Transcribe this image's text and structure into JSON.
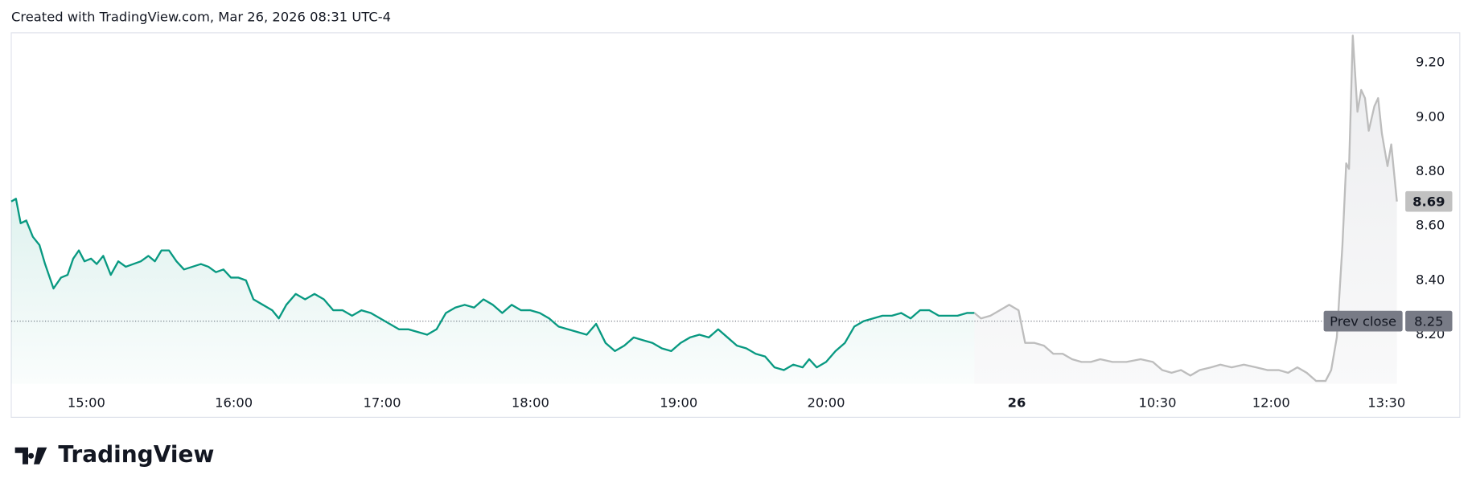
{
  "header": {
    "text": "Created with TradingView.com, Mar 26, 2026 08:31 UTC-4"
  },
  "chart_data": {
    "type": "line",
    "xlim": [
      0,
      1476
    ],
    "ylim": [
      8.02,
      9.31
    ],
    "xticks": [
      {
        "value": 80,
        "label": "15:00"
      },
      {
        "value": 237,
        "label": "16:00"
      },
      {
        "value": 395,
        "label": "17:00"
      },
      {
        "value": 553,
        "label": "18:00"
      },
      {
        "value": 711,
        "label": "19:00"
      },
      {
        "value": 868,
        "label": "20:00"
      },
      {
        "value": 1071,
        "label": "26"
      },
      {
        "value": 1221,
        "label": "10:30"
      },
      {
        "value": 1342,
        "label": "12:00"
      },
      {
        "value": 1465,
        "label": "13:30"
      }
    ],
    "yticks": [
      {
        "value": 8.2,
        "label": "8.20"
      },
      {
        "value": 8.4,
        "label": "8.40"
      },
      {
        "value": 8.6,
        "label": "8.60"
      },
      {
        "value": 8.8,
        "label": "8.80"
      },
      {
        "value": 9,
        "label": "9.00"
      },
      {
        "value": 9.2,
        "label": "9.20"
      }
    ],
    "prev_close": {
      "label": "Prev close",
      "value": 8.25
    },
    "series": [
      {
        "color": "#089981",
        "fill": "#089981",
        "x": [
          0,
          5,
          10,
          16,
          23,
          30,
          36,
          45,
          53,
          60,
          66,
          72,
          78,
          85,
          91,
          98,
          106,
          114,
          122,
          130,
          138,
          146,
          153,
          160,
          168,
          176,
          184,
          193,
          202,
          210,
          218,
          226,
          234,
          242,
          250,
          258,
          268,
          278,
          285,
          293,
          303,
          313,
          323,
          333,
          343,
          353,
          363,
          373,
          383,
          393,
          403,
          413,
          423,
          433,
          443,
          453,
          463,
          473,
          483,
          493,
          503,
          513,
          523,
          533,
          543,
          553,
          563,
          573,
          583,
          593,
          603,
          613,
          623,
          633,
          643,
          653,
          663,
          673,
          683,
          693,
          703,
          713,
          723,
          733,
          743,
          753,
          763,
          773,
          783,
          793,
          803,
          813,
          823,
          833,
          843,
          850,
          858,
          868,
          878,
          888,
          898,
          908,
          918,
          928,
          938,
          948,
          958,
          968,
          978,
          988,
          998,
          1008,
          1018,
          1026
        ],
        "values": [
          8.69,
          8.7,
          8.61,
          8.62,
          8.56,
          8.53,
          8.46,
          8.37,
          8.41,
          8.42,
          8.48,
          8.51,
          8.47,
          8.48,
          8.46,
          8.49,
          8.42,
          8.47,
          8.45,
          8.46,
          8.47,
          8.49,
          8.47,
          8.51,
          8.51,
          8.47,
          8.44,
          8.45,
          8.46,
          8.45,
          8.43,
          8.44,
          8.41,
          8.41,
          8.4,
          8.33,
          8.31,
          8.29,
          8.26,
          8.31,
          8.35,
          8.33,
          8.35,
          8.33,
          8.29,
          8.29,
          8.27,
          8.29,
          8.28,
          8.26,
          8.24,
          8.22,
          8.22,
          8.21,
          8.2,
          8.22,
          8.28,
          8.3,
          8.31,
          8.3,
          8.33,
          8.31,
          8.28,
          8.31,
          8.29,
          8.29,
          8.28,
          8.26,
          8.23,
          8.22,
          8.21,
          8.2,
          8.24,
          8.17,
          8.14,
          8.16,
          8.19,
          8.18,
          8.17,
          8.15,
          8.14,
          8.17,
          8.19,
          8.2,
          8.19,
          8.22,
          8.19,
          8.16,
          8.15,
          8.13,
          8.12,
          8.08,
          8.07,
          8.09,
          8.08,
          8.11,
          8.08,
          8.1,
          8.14,
          8.17,
          8.23,
          8.25,
          8.26,
          8.27,
          8.27,
          8.28,
          8.26,
          8.29,
          8.29,
          8.27,
          8.27,
          8.27,
          8.28,
          8.28
        ]
      },
      {
        "color": "#bdbdbd",
        "fill": "#b2b5be",
        "x": [
          1026,
          1033,
          1043,
          1053,
          1063,
          1073,
          1080,
          1090,
          1100,
          1110,
          1120,
          1130,
          1140,
          1150,
          1160,
          1173,
          1188,
          1203,
          1216,
          1226,
          1236,
          1246,
          1256,
          1266,
          1278,
          1288,
          1300,
          1313,
          1326,
          1338,
          1350,
          1360,
          1370,
          1380,
          1390,
          1400,
          1406,
          1412,
          1418,
          1422,
          1425,
          1429,
          1434,
          1438,
          1442,
          1446,
          1452,
          1456,
          1460,
          1466,
          1470,
          1476
        ],
        "values": [
          8.28,
          8.26,
          8.27,
          8.29,
          8.31,
          8.29,
          8.17,
          8.17,
          8.16,
          8.13,
          8.13,
          8.11,
          8.1,
          8.1,
          8.11,
          8.1,
          8.1,
          8.11,
          8.1,
          8.07,
          8.06,
          8.07,
          8.05,
          8.07,
          8.08,
          8.09,
          8.08,
          8.09,
          8.08,
          8.07,
          8.07,
          8.06,
          8.08,
          8.06,
          8.03,
          8.03,
          8.07,
          8.19,
          8.53,
          8.83,
          8.81,
          9.3,
          9.02,
          9.1,
          9.07,
          8.95,
          9.04,
          9.07,
          8.94,
          8.82,
          8.9,
          8.69
        ]
      }
    ]
  },
  "footer": {
    "logo": "TradingView"
  }
}
